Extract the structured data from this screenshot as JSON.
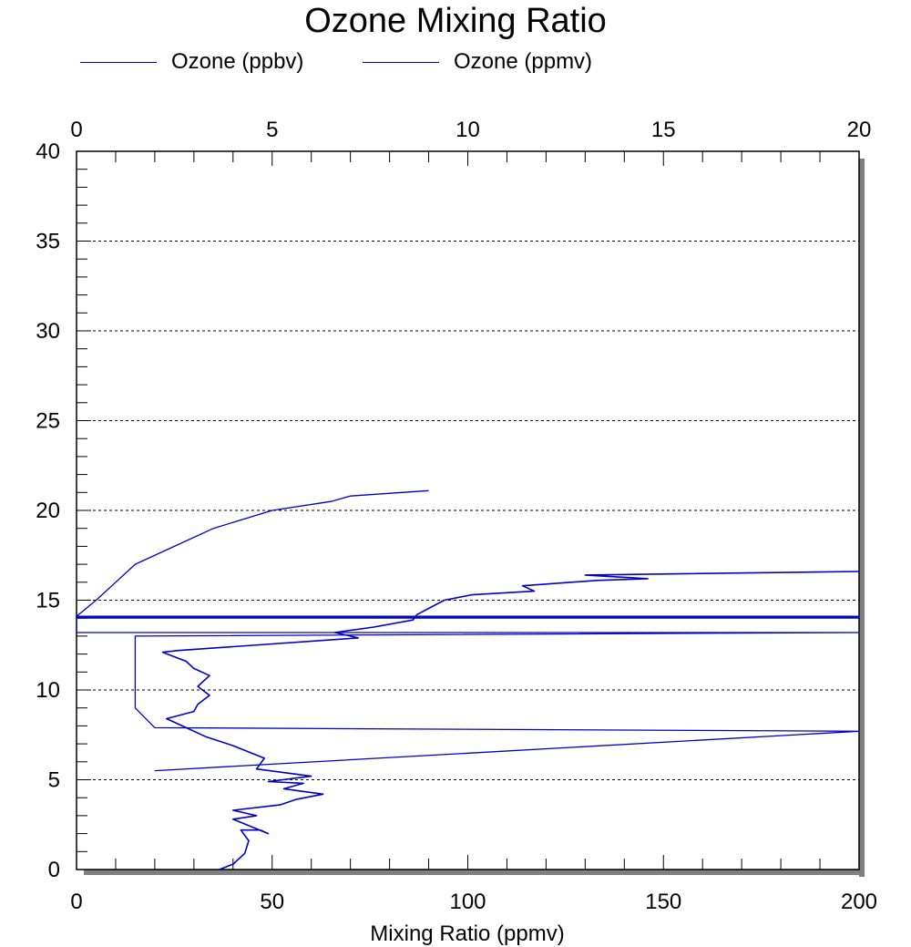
{
  "chart_data": {
    "type": "line",
    "title": "Ozone Mixing Ratio",
    "xlabel": "Mixing Ratio (ppmv)",
    "ylabel": "",
    "xlim_bottom": [
      0,
      200
    ],
    "xlim_top": [
      0,
      20
    ],
    "ylim": [
      0,
      40
    ],
    "x_ticks_bottom": [
      "0",
      "50",
      "100",
      "150",
      "200"
    ],
    "x_ticks_top": [
      "0",
      "5",
      "10",
      "15",
      "20"
    ],
    "y_ticks": [
      "0",
      "5",
      "10",
      "15",
      "20",
      "25",
      "30",
      "35",
      "40"
    ],
    "grid": "horizontal dotted",
    "legend_position": "top",
    "series": [
      {
        "name": "Ozone (ppbv)",
        "color": "#0000cc",
        "axis": "bottom",
        "points": [
          [
            36.5,
            0.0
          ],
          [
            40,
            0.3
          ],
          [
            43,
            0.9
          ],
          [
            44,
            1.6
          ],
          [
            42,
            2.2
          ],
          [
            47,
            2.2
          ],
          [
            49,
            2.0
          ],
          [
            40,
            2.8
          ],
          [
            46,
            3.0
          ],
          [
            40,
            3.3
          ],
          [
            52,
            3.6
          ],
          [
            56,
            3.9
          ],
          [
            63,
            4.2
          ],
          [
            53,
            4.5
          ],
          [
            58,
            4.8
          ],
          [
            49,
            4.9
          ],
          [
            60,
            5.2
          ],
          [
            46,
            5.6
          ],
          [
            48,
            6.2
          ],
          [
            40,
            6.9
          ],
          [
            33,
            7.4
          ],
          [
            26,
            8.1
          ],
          [
            23,
            8.4
          ],
          [
            30,
            8.8
          ],
          [
            31,
            9.2
          ],
          [
            34,
            9.7
          ],
          [
            31,
            10.2
          ],
          [
            34,
            10.8
          ],
          [
            30,
            11.2
          ],
          [
            28,
            11.6
          ],
          [
            22,
            12.1
          ],
          [
            26,
            12.2
          ],
          [
            72,
            12.9
          ],
          [
            66,
            13.2
          ],
          [
            76,
            13.5
          ],
          [
            86,
            13.9
          ],
          [
            87,
            14.2
          ],
          [
            94,
            15.0
          ],
          [
            101,
            15.3
          ],
          [
            117,
            15.5
          ],
          [
            114,
            15.8
          ],
          [
            133,
            16.1
          ],
          [
            146,
            16.2
          ],
          [
            130,
            16.4
          ],
          [
            200,
            16.6
          ]
        ]
      },
      {
        "name": "Ozone (ppmv)",
        "color": "#0000cc",
        "axis": "top",
        "points": [
          [
            2.0,
            5.5
          ],
          [
            20.0,
            7.7
          ],
          [
            2.0,
            7.9
          ],
          [
            1.5,
            9.0
          ],
          [
            1.5,
            10.5
          ],
          [
            1.5,
            12.0
          ],
          [
            1.5,
            13.0
          ],
          [
            20.0,
            13.2
          ],
          [
            0.0,
            13.2
          ],
          [
            0.0,
            14.1
          ],
          [
            20.0,
            14.1
          ],
          [
            0.0,
            14.1
          ],
          [
            0.5,
            15.0
          ],
          [
            1.0,
            16.0
          ],
          [
            1.5,
            17.0
          ],
          [
            2.5,
            18.0
          ],
          [
            3.5,
            19.0
          ],
          [
            5.0,
            20.0
          ],
          [
            6.5,
            20.5
          ],
          [
            7.0,
            20.8
          ],
          [
            9.0,
            21.1
          ]
        ]
      }
    ]
  }
}
